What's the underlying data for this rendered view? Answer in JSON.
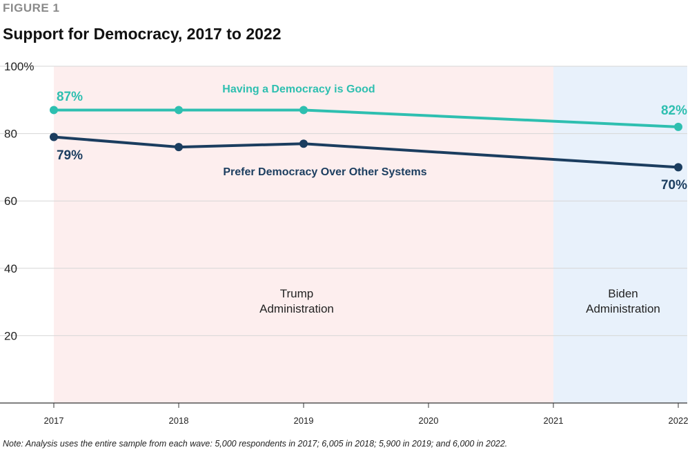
{
  "figure_label": "FIGURE 1",
  "title": "Support for Democracy, 2017 to 2022",
  "note": "Note: Analysis uses the entire sample from each wave: 5,000 respondents in 2017; 6,005 in 2018; 5,900 in 2019; and 6,000 in 2022.",
  "colors": {
    "trump_band": "#fdeeee",
    "biden_band": "#e8f1fb",
    "good_series": "#2ebfb0",
    "prefer_series": "#1b3d5f",
    "grid": "#d6d6d6",
    "axis": "#333333"
  },
  "chart_data": {
    "type": "line",
    "x": [
      2017,
      2018,
      2019,
      2022
    ],
    "xticks": [
      "2017",
      "2018",
      "2019",
      "2020",
      "2021",
      "2022"
    ],
    "xlim": [
      2017,
      2022
    ],
    "ylim": [
      0,
      100
    ],
    "yticks": [
      "20",
      "40",
      "60",
      "80",
      "100%"
    ],
    "grid": true,
    "series": [
      {
        "name": "Having a Democracy is Good",
        "values": [
          87,
          87,
          87,
          82
        ],
        "data_labels": [
          "87%",
          "",
          "",
          "82%"
        ]
      },
      {
        "name": "Prefer Democracy Over Other Systems",
        "values": [
          79,
          76,
          77,
          70
        ],
        "data_labels": [
          "79%",
          "",
          "",
          "70%"
        ]
      }
    ],
    "bands": [
      {
        "label_line1": "Trump",
        "label_line2": "Administration",
        "from": 2017,
        "to": 2021
      },
      {
        "label_line1": "Biden",
        "label_line2": "Administration",
        "from": 2021,
        "to": 2022
      }
    ]
  }
}
